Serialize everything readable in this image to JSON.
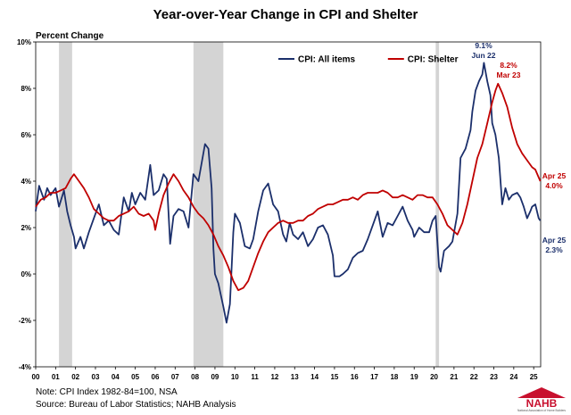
{
  "title": "Year-over-Year Change in CPI and Shelter",
  "unit_label": "Percent Change",
  "notes": [
    "Note: CPI Index 1982-84=100, NSA",
    "Source: Bureau of Labor Statistics; NAHB Analysis"
  ],
  "logo": {
    "text": "NAHB",
    "subtext": "National Association of Home Builders",
    "color": "#c8102e"
  },
  "colors": {
    "cpi": "#1b2f6b",
    "shelter": "#c00000",
    "recession": "#d4d4d4",
    "axis": "#000000"
  },
  "chart_data": {
    "type": "line",
    "title": "Year-over-Year Change in CPI and Shelter",
    "ylabel": "Percent Change",
    "xlabel": "",
    "ylim": [
      -4,
      10
    ],
    "xlim": [
      2000.0,
      2025.35
    ],
    "y_ticks": [
      -4,
      -2,
      0,
      2,
      4,
      6,
      8,
      10
    ],
    "y_tick_labels": [
      "-4%",
      "-2%",
      "0%",
      "2%",
      "4%",
      "6%",
      "8%",
      "10%"
    ],
    "x_ticks": [
      2000,
      2001,
      2002,
      2003,
      2004,
      2005,
      2006,
      2007,
      2008,
      2009,
      2010,
      2011,
      2012,
      2013,
      2014,
      2015,
      2016,
      2017,
      2018,
      2019,
      2020,
      2021,
      2022,
      2023,
      2024,
      2025
    ],
    "x_tick_labels": [
      "00",
      "01",
      "02",
      "03",
      "04",
      "05",
      "06",
      "07",
      "08",
      "09",
      "10",
      "11",
      "12",
      "13",
      "14",
      "15",
      "16",
      "17",
      "18",
      "19",
      "20",
      "21",
      "22",
      "23",
      "24",
      "25"
    ],
    "grid": false,
    "legend_position": "top-right",
    "recessions": [
      [
        2001.17,
        2001.83
      ],
      [
        2007.92,
        2009.42
      ],
      [
        2020.08,
        2020.25
      ]
    ],
    "series": [
      {
        "name": "CPI: All items",
        "color_key": "cpi",
        "points": [
          [
            2000.0,
            2.7
          ],
          [
            2000.17,
            3.8
          ],
          [
            2000.42,
            3.2
          ],
          [
            2000.58,
            3.7
          ],
          [
            2000.75,
            3.4
          ],
          [
            2001.0,
            3.7
          ],
          [
            2001.17,
            2.9
          ],
          [
            2001.42,
            3.6
          ],
          [
            2001.58,
            2.7
          ],
          [
            2001.75,
            2.1
          ],
          [
            2001.92,
            1.6
          ],
          [
            2002.0,
            1.1
          ],
          [
            2002.25,
            1.6
          ],
          [
            2002.42,
            1.1
          ],
          [
            2002.67,
            1.8
          ],
          [
            2002.92,
            2.4
          ],
          [
            2003.17,
            3.0
          ],
          [
            2003.42,
            2.1
          ],
          [
            2003.67,
            2.3
          ],
          [
            2003.92,
            1.9
          ],
          [
            2004.17,
            1.7
          ],
          [
            2004.42,
            3.3
          ],
          [
            2004.67,
            2.7
          ],
          [
            2004.83,
            3.5
          ],
          [
            2005.0,
            3.0
          ],
          [
            2005.25,
            3.5
          ],
          [
            2005.5,
            3.2
          ],
          [
            2005.75,
            4.7
          ],
          [
            2005.92,
            3.4
          ],
          [
            2006.17,
            3.6
          ],
          [
            2006.42,
            4.3
          ],
          [
            2006.58,
            4.1
          ],
          [
            2006.75,
            1.3
          ],
          [
            2006.92,
            2.5
          ],
          [
            2007.17,
            2.8
          ],
          [
            2007.42,
            2.7
          ],
          [
            2007.67,
            2.0
          ],
          [
            2007.92,
            4.3
          ],
          [
            2008.17,
            4.0
          ],
          [
            2008.5,
            5.6
          ],
          [
            2008.67,
            5.4
          ],
          [
            2008.83,
            3.7
          ],
          [
            2008.92,
            1.1
          ],
          [
            2009.0,
            0.0
          ],
          [
            2009.17,
            -0.4
          ],
          [
            2009.42,
            -1.4
          ],
          [
            2009.58,
            -2.1
          ],
          [
            2009.75,
            -1.3
          ],
          [
            2009.92,
            1.8
          ],
          [
            2010.0,
            2.6
          ],
          [
            2010.25,
            2.2
          ],
          [
            2010.5,
            1.2
          ],
          [
            2010.75,
            1.1
          ],
          [
            2010.92,
            1.5
          ],
          [
            2011.17,
            2.7
          ],
          [
            2011.42,
            3.6
          ],
          [
            2011.67,
            3.9
          ],
          [
            2011.92,
            3.0
          ],
          [
            2012.17,
            2.7
          ],
          [
            2012.42,
            1.7
          ],
          [
            2012.58,
            1.4
          ],
          [
            2012.75,
            2.2
          ],
          [
            2012.92,
            1.7
          ],
          [
            2013.17,
            1.5
          ],
          [
            2013.42,
            1.8
          ],
          [
            2013.67,
            1.2
          ],
          [
            2013.92,
            1.5
          ],
          [
            2014.17,
            2.0
          ],
          [
            2014.42,
            2.1
          ],
          [
            2014.67,
            1.7
          ],
          [
            2014.92,
            0.8
          ],
          [
            2015.0,
            -0.1
          ],
          [
            2015.25,
            -0.1
          ],
          [
            2015.42,
            0.0
          ],
          [
            2015.67,
            0.2
          ],
          [
            2015.92,
            0.7
          ],
          [
            2016.17,
            0.9
          ],
          [
            2016.42,
            1.0
          ],
          [
            2016.67,
            1.5
          ],
          [
            2016.92,
            2.1
          ],
          [
            2017.17,
            2.7
          ],
          [
            2017.42,
            1.6
          ],
          [
            2017.67,
            2.2
          ],
          [
            2017.92,
            2.1
          ],
          [
            2018.17,
            2.5
          ],
          [
            2018.42,
            2.9
          ],
          [
            2018.67,
            2.3
          ],
          [
            2018.92,
            1.9
          ],
          [
            2019.0,
            1.6
          ],
          [
            2019.25,
            2.0
          ],
          [
            2019.5,
            1.8
          ],
          [
            2019.75,
            1.8
          ],
          [
            2019.92,
            2.3
          ],
          [
            2020.08,
            2.5
          ],
          [
            2020.25,
            0.3
          ],
          [
            2020.33,
            0.1
          ],
          [
            2020.5,
            1.0
          ],
          [
            2020.75,
            1.2
          ],
          [
            2020.92,
            1.4
          ],
          [
            2021.17,
            2.6
          ],
          [
            2021.33,
            5.0
          ],
          [
            2021.58,
            5.4
          ],
          [
            2021.83,
            6.2
          ],
          [
            2021.92,
            7.0
          ],
          [
            2022.08,
            7.9
          ],
          [
            2022.25,
            8.3
          ],
          [
            2022.42,
            8.6
          ],
          [
            2022.5,
            9.1
          ],
          [
            2022.67,
            8.3
          ],
          [
            2022.83,
            7.7
          ],
          [
            2022.92,
            6.5
          ],
          [
            2023.08,
            6.0
          ],
          [
            2023.25,
            5.0
          ],
          [
            2023.42,
            3.0
          ],
          [
            2023.58,
            3.7
          ],
          [
            2023.75,
            3.2
          ],
          [
            2023.92,
            3.4
          ],
          [
            2024.17,
            3.5
          ],
          [
            2024.33,
            3.3
          ],
          [
            2024.5,
            2.9
          ],
          [
            2024.67,
            2.4
          ],
          [
            2024.83,
            2.7
          ],
          [
            2024.92,
            2.9
          ],
          [
            2025.08,
            3.0
          ],
          [
            2025.25,
            2.4
          ],
          [
            2025.33,
            2.3
          ]
        ]
      },
      {
        "name": "CPI: Shelter",
        "color_key": "shelter",
        "points": [
          [
            2000.0,
            2.9
          ],
          [
            2000.25,
            3.2
          ],
          [
            2000.5,
            3.3
          ],
          [
            2000.75,
            3.5
          ],
          [
            2001.0,
            3.5
          ],
          [
            2001.25,
            3.6
          ],
          [
            2001.5,
            3.7
          ],
          [
            2001.75,
            4.1
          ],
          [
            2001.92,
            4.3
          ],
          [
            2002.17,
            4.0
          ],
          [
            2002.42,
            3.7
          ],
          [
            2002.67,
            3.3
          ],
          [
            2002.92,
            2.8
          ],
          [
            2003.17,
            2.6
          ],
          [
            2003.42,
            2.4
          ],
          [
            2003.67,
            2.3
          ],
          [
            2003.92,
            2.3
          ],
          [
            2004.17,
            2.5
          ],
          [
            2004.42,
            2.6
          ],
          [
            2004.67,
            2.7
          ],
          [
            2004.92,
            2.9
          ],
          [
            2005.17,
            2.6
          ],
          [
            2005.42,
            2.5
          ],
          [
            2005.67,
            2.6
          ],
          [
            2005.92,
            2.3
          ],
          [
            2006.0,
            1.9
          ],
          [
            2006.17,
            2.6
          ],
          [
            2006.42,
            3.4
          ],
          [
            2006.67,
            3.9
          ],
          [
            2006.92,
            4.3
          ],
          [
            2007.17,
            4.0
          ],
          [
            2007.42,
            3.6
          ],
          [
            2007.67,
            3.3
          ],
          [
            2007.92,
            2.9
          ],
          [
            2008.17,
            2.6
          ],
          [
            2008.42,
            2.4
          ],
          [
            2008.67,
            2.1
          ],
          [
            2008.92,
            1.7
          ],
          [
            2009.17,
            1.2
          ],
          [
            2009.42,
            0.8
          ],
          [
            2009.67,
            0.3
          ],
          [
            2009.92,
            -0.3
          ],
          [
            2010.17,
            -0.7
          ],
          [
            2010.42,
            -0.6
          ],
          [
            2010.67,
            -0.3
          ],
          [
            2010.92,
            0.3
          ],
          [
            2011.17,
            0.9
          ],
          [
            2011.42,
            1.4
          ],
          [
            2011.67,
            1.8
          ],
          [
            2011.92,
            2.0
          ],
          [
            2012.17,
            2.2
          ],
          [
            2012.42,
            2.3
          ],
          [
            2012.67,
            2.2
          ],
          [
            2012.92,
            2.2
          ],
          [
            2013.17,
            2.3
          ],
          [
            2013.42,
            2.3
          ],
          [
            2013.67,
            2.5
          ],
          [
            2013.92,
            2.6
          ],
          [
            2014.17,
            2.8
          ],
          [
            2014.42,
            2.9
          ],
          [
            2014.67,
            3.0
          ],
          [
            2014.92,
            3.0
          ],
          [
            2015.17,
            3.1
          ],
          [
            2015.42,
            3.2
          ],
          [
            2015.67,
            3.2
          ],
          [
            2015.92,
            3.3
          ],
          [
            2016.17,
            3.2
          ],
          [
            2016.42,
            3.4
          ],
          [
            2016.67,
            3.5
          ],
          [
            2016.92,
            3.5
          ],
          [
            2017.17,
            3.5
          ],
          [
            2017.42,
            3.6
          ],
          [
            2017.67,
            3.5
          ],
          [
            2017.92,
            3.3
          ],
          [
            2018.17,
            3.3
          ],
          [
            2018.42,
            3.4
          ],
          [
            2018.67,
            3.3
          ],
          [
            2018.92,
            3.2
          ],
          [
            2019.17,
            3.4
          ],
          [
            2019.42,
            3.4
          ],
          [
            2019.67,
            3.3
          ],
          [
            2019.92,
            3.3
          ],
          [
            2020.17,
            3.0
          ],
          [
            2020.42,
            2.6
          ],
          [
            2020.67,
            2.1
          ],
          [
            2020.92,
            1.9
          ],
          [
            2021.17,
            1.7
          ],
          [
            2021.42,
            2.2
          ],
          [
            2021.67,
            3.0
          ],
          [
            2021.92,
            4.0
          ],
          [
            2022.17,
            5.0
          ],
          [
            2022.42,
            5.6
          ],
          [
            2022.67,
            6.5
          ],
          [
            2022.92,
            7.4
          ],
          [
            2023.08,
            7.9
          ],
          [
            2023.21,
            8.2
          ],
          [
            2023.42,
            7.8
          ],
          [
            2023.67,
            7.2
          ],
          [
            2023.92,
            6.3
          ],
          [
            2024.17,
            5.6
          ],
          [
            2024.42,
            5.2
          ],
          [
            2024.67,
            4.9
          ],
          [
            2024.92,
            4.6
          ],
          [
            2025.08,
            4.5
          ],
          [
            2025.33,
            4.0
          ]
        ]
      }
    ],
    "annotations": [
      {
        "value": "9.1%",
        "date": "Jun 22",
        "series": "CPI: All items"
      },
      {
        "value": "8.2%",
        "date": "Mar 23",
        "series": "CPI: Shelter"
      },
      {
        "value": "4.0%",
        "date": "Apr 25",
        "series": "CPI: Shelter"
      },
      {
        "value": "2.3%",
        "date": "Apr 25",
        "series": "CPI: All items"
      }
    ]
  }
}
